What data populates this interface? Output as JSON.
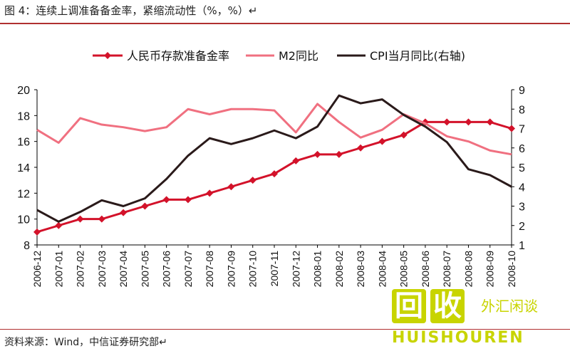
{
  "header": {
    "title": "图 4：连续上调准备备金率，紧缩流动性（%，%）↵"
  },
  "footer": {
    "source": "资料来源：Wind，中信证券研究部↵"
  },
  "watermark": {
    "left_glyph": "回",
    "right_glyph": "收",
    "brand": "HUISHOUREN",
    "side": "外汇闲谈"
  },
  "chart_data": {
    "type": "line",
    "categories": [
      "2006-12",
      "2007-01",
      "2007-02",
      "2007-03",
      "2007-04",
      "2007-05",
      "2007-06",
      "2007-07",
      "2007-08",
      "2007-09",
      "2007-10",
      "2007-11",
      "2007-12",
      "2008-01",
      "2008-02",
      "2008-03",
      "2008-04",
      "2008-05",
      "2008-06",
      "2008-07",
      "2008-08",
      "2008-09",
      "2008-10"
    ],
    "series": [
      {
        "name": "人民币存款准备金率",
        "axis": "left",
        "color": "#d3122a",
        "marker": "diamond",
        "values": [
          9.0,
          9.5,
          10.0,
          10.0,
          10.5,
          11.0,
          11.5,
          11.5,
          12.0,
          12.5,
          13.0,
          13.5,
          14.5,
          15.0,
          15.0,
          15.5,
          16.0,
          16.5,
          17.5,
          17.5,
          17.5,
          17.5,
          17.0
        ]
      },
      {
        "name": "M2同比",
        "axis": "left",
        "color": "#f07080",
        "marker": "none",
        "values": [
          16.9,
          15.9,
          17.8,
          17.3,
          17.1,
          16.8,
          17.1,
          18.5,
          18.1,
          18.5,
          18.5,
          18.4,
          16.7,
          18.9,
          17.5,
          16.3,
          16.9,
          18.1,
          17.4,
          16.4,
          16.0,
          15.3,
          15.0
        ]
      },
      {
        "name": "CPI当月同比(右轴)",
        "axis": "right",
        "color": "#2a1a1a",
        "marker": "none",
        "values": [
          2.8,
          2.2,
          2.7,
          3.3,
          3.0,
          3.4,
          4.4,
          5.6,
          6.5,
          6.2,
          6.5,
          6.9,
          6.5,
          7.1,
          8.7,
          8.3,
          8.5,
          7.7,
          7.1,
          6.3,
          4.9,
          4.6,
          4.0
        ]
      }
    ],
    "left_axis": {
      "min": 8,
      "max": 20,
      "ticks": [
        "8",
        "10",
        "12",
        "14",
        "16",
        "18",
        "20"
      ]
    },
    "right_axis": {
      "min": 1,
      "max": 9,
      "ticks": [
        "1",
        "2",
        "3",
        "4",
        "5",
        "6",
        "7",
        "8",
        "9"
      ]
    },
    "legend": {
      "placement": "top"
    },
    "grid": false,
    "colors": {
      "accent": "#b03030"
    }
  }
}
